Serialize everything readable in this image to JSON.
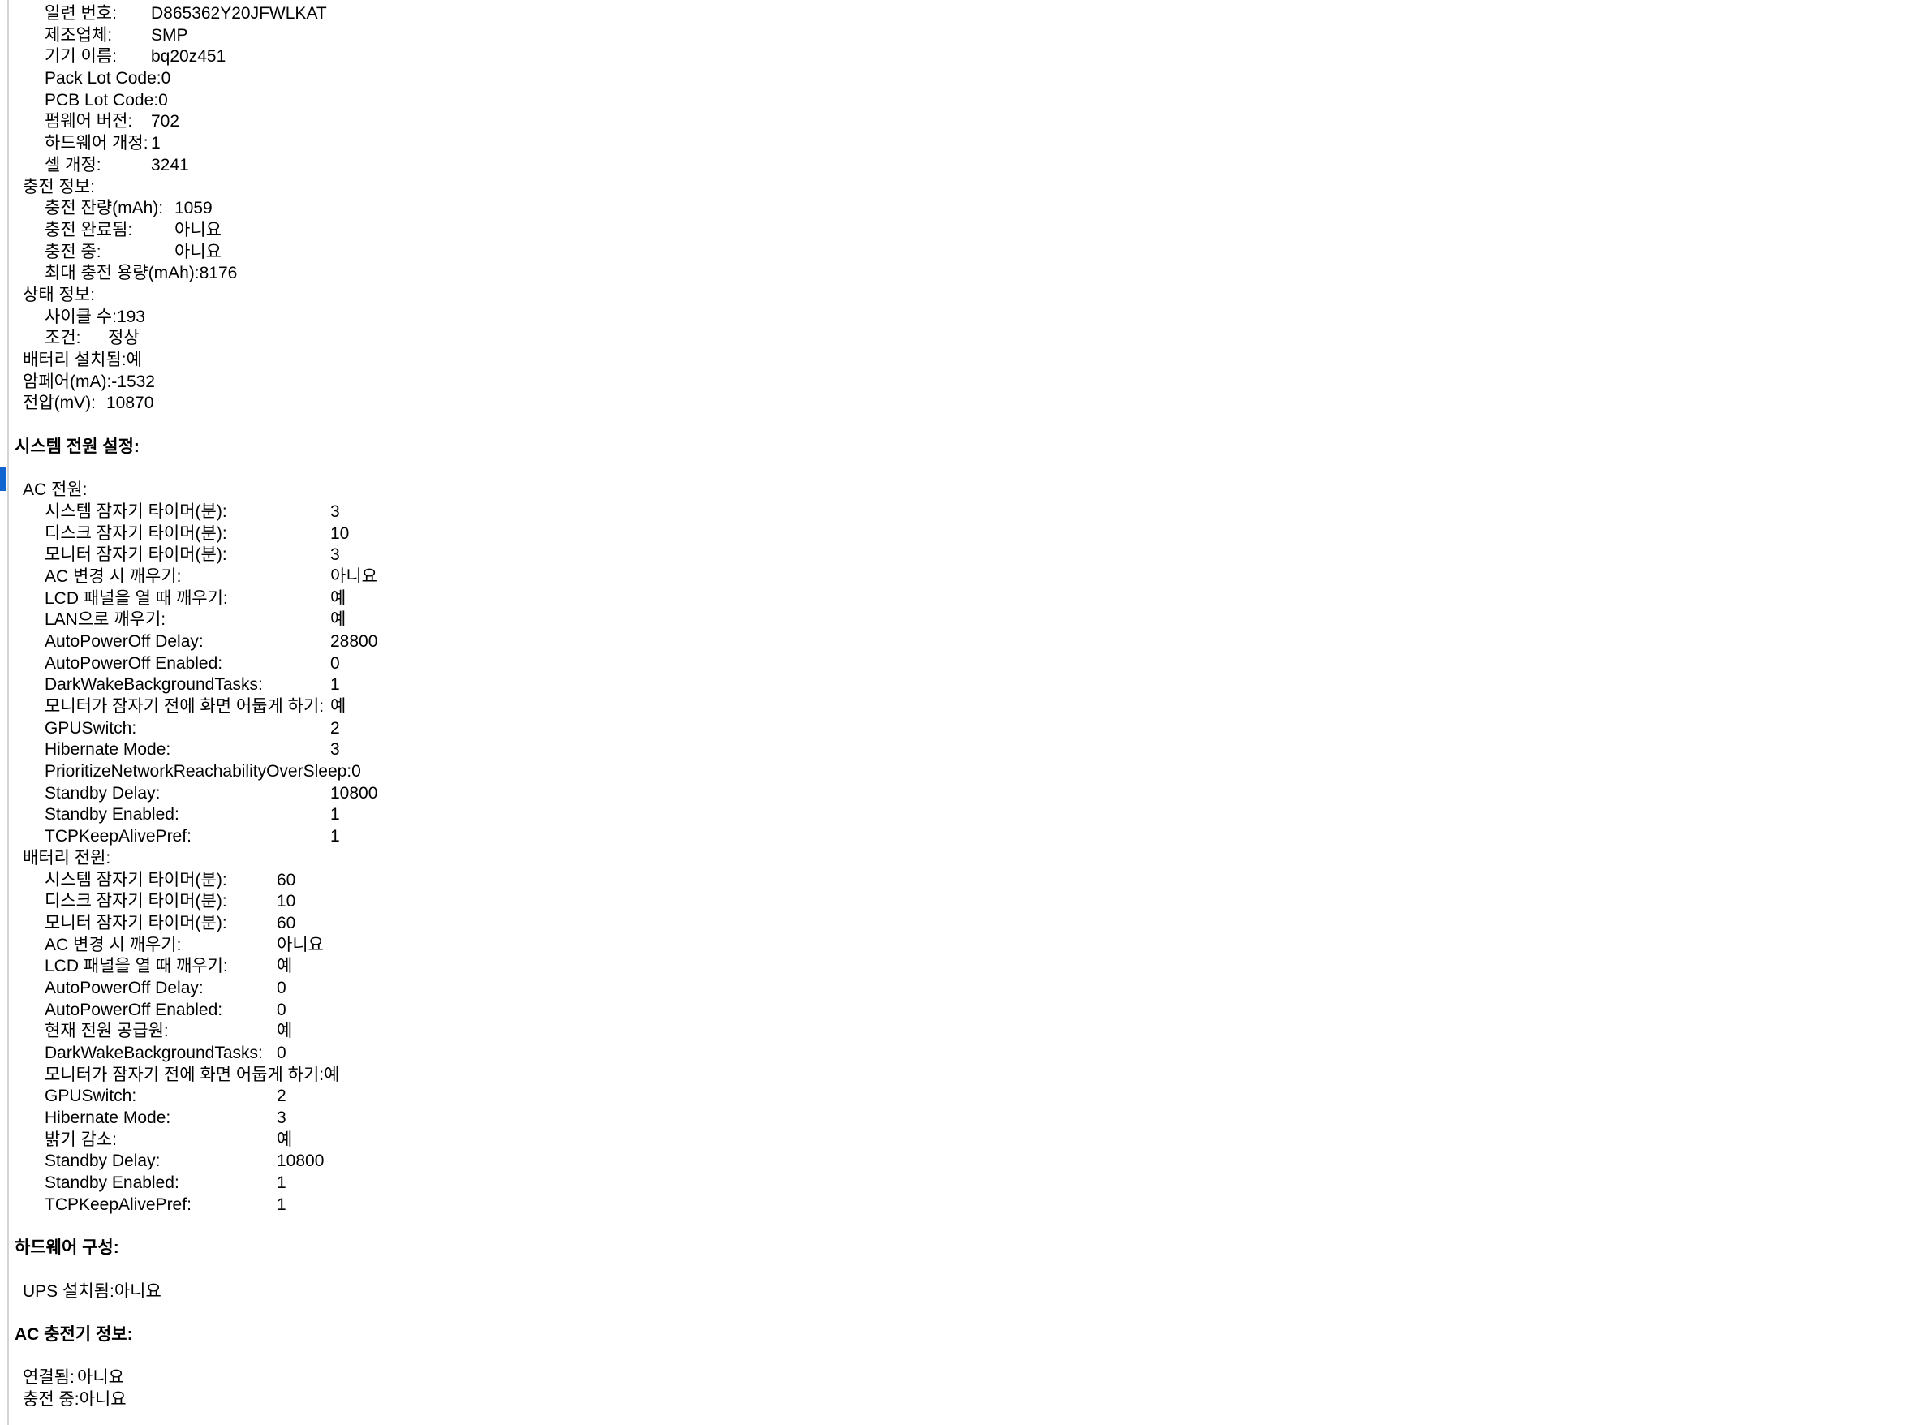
{
  "colors": {
    "background": "#ffffff",
    "text": "#000000",
    "pane_divider": "#d4d4d4",
    "selection_bar": "#1264d1"
  },
  "groups": {
    "battery_model": {
      "indent": 55,
      "label_width": 131
    },
    "charge_info": {
      "indent": 55,
      "label_width": 160
    },
    "status_info": {
      "indent": 55,
      "label_width": 78
    },
    "battery_top": {
      "indent": 28,
      "label_width": 103
    },
    "ac_power": {
      "indent": 55,
      "label_width": 352
    },
    "battery_power": {
      "indent": 55,
      "label_width": 286
    },
    "ups": {
      "indent": 28,
      "label_width": 102
    },
    "ac_charger": {
      "indent": 28,
      "label_width": 67
    },
    "header_indent": 18,
    "subhead_indent": 28
  },
  "content": {
    "lines": [
      {
        "t": "kv",
        "g": "battery_model",
        "label": "일련 번호:",
        "value": "D865362Y20JFWLKAT"
      },
      {
        "t": "kv",
        "g": "battery_model",
        "label": "제조업체:",
        "value": "SMP"
      },
      {
        "t": "kv",
        "g": "battery_model",
        "label": "기기 이름:",
        "value": "bq20z451"
      },
      {
        "t": "kv",
        "g": "battery_model",
        "label": "Pack Lot Code:",
        "value": "0"
      },
      {
        "t": "kv",
        "g": "battery_model",
        "label": "PCB Lot Code:",
        "value": "0"
      },
      {
        "t": "kv",
        "g": "battery_model",
        "label": "펌웨어 버전:",
        "value": "702"
      },
      {
        "t": "kv",
        "g": "battery_model",
        "label": "하드웨어 개정:",
        "value": "1"
      },
      {
        "t": "kv",
        "g": "battery_model",
        "label": "셀 개정:",
        "value": "3241"
      },
      {
        "t": "sub",
        "label": "충전 정보:"
      },
      {
        "t": "kv",
        "g": "charge_info",
        "label": "충전 잔량(mAh):",
        "value": "1059"
      },
      {
        "t": "kv",
        "g": "charge_info",
        "label": "충전 완료됨:",
        "value": "아니요"
      },
      {
        "t": "kv",
        "g": "charge_info",
        "label": "충전 중:",
        "value": "아니요"
      },
      {
        "t": "kv",
        "g": "charge_info",
        "label": "최대 충전 용량(mAh):",
        "value": "8176"
      },
      {
        "t": "sub",
        "label": "상태 정보:"
      },
      {
        "t": "kv",
        "g": "status_info",
        "label": "사이클 수:",
        "value": "193"
      },
      {
        "t": "kv",
        "g": "status_info",
        "label": "조건:",
        "value": "정상"
      },
      {
        "t": "kv",
        "g": "battery_top",
        "label": "배터리 설치됨:",
        "value": "예"
      },
      {
        "t": "kv",
        "g": "battery_top",
        "label": "암페어(mA):",
        "value": "-1532"
      },
      {
        "t": "kv",
        "g": "battery_top",
        "label": "전압(mV):",
        "value": "10870"
      },
      {
        "t": "blank"
      },
      {
        "t": "h",
        "label": "시스템 전원 설정:"
      },
      {
        "t": "blank"
      },
      {
        "t": "sub",
        "label": "AC 전원:"
      },
      {
        "t": "kv",
        "g": "ac_power",
        "label": "시스템 잠자기 타이머(분):",
        "value": "3"
      },
      {
        "t": "kv",
        "g": "ac_power",
        "label": "디스크 잠자기 타이머(분):",
        "value": "10"
      },
      {
        "t": "kv",
        "g": "ac_power",
        "label": "모니터 잠자기 타이머(분):",
        "value": "3"
      },
      {
        "t": "kv",
        "g": "ac_power",
        "label": "AC 변경 시 깨우기:",
        "value": "아니요"
      },
      {
        "t": "kv",
        "g": "ac_power",
        "label": "LCD 패널을 열 때 깨우기:",
        "value": "예"
      },
      {
        "t": "kv",
        "g": "ac_power",
        "label": "LAN으로 깨우기:",
        "value": "예"
      },
      {
        "t": "kv",
        "g": "ac_power",
        "label": "AutoPowerOff Delay:",
        "value": "28800"
      },
      {
        "t": "kv",
        "g": "ac_power",
        "label": "AutoPowerOff Enabled:",
        "value": "0"
      },
      {
        "t": "kv",
        "g": "ac_power",
        "label": "DarkWakeBackgroundTasks:",
        "value": "1"
      },
      {
        "t": "kv",
        "g": "ac_power",
        "label": "모니터가 잠자기 전에 화면 어둡게 하기:",
        "value": "예"
      },
      {
        "t": "kv",
        "g": "ac_power",
        "label": "GPUSwitch:",
        "value": "2"
      },
      {
        "t": "kv",
        "g": "ac_power",
        "label": "Hibernate Mode:",
        "value": "3"
      },
      {
        "t": "kv",
        "g": "ac_power",
        "label": "PrioritizeNetworkReachabilityOverSleep:",
        "value": "0"
      },
      {
        "t": "kv",
        "g": "ac_power",
        "label": "Standby Delay:",
        "value": "10800"
      },
      {
        "t": "kv",
        "g": "ac_power",
        "label": "Standby Enabled:",
        "value": "1"
      },
      {
        "t": "kv",
        "g": "ac_power",
        "label": "TCPKeepAlivePref:",
        "value": "1"
      },
      {
        "t": "sub",
        "label": "배터리 전원:"
      },
      {
        "t": "kv",
        "g": "battery_power",
        "label": "시스템 잠자기 타이머(분):",
        "value": "60"
      },
      {
        "t": "kv",
        "g": "battery_power",
        "label": "디스크 잠자기 타이머(분):",
        "value": "10"
      },
      {
        "t": "kv",
        "g": "battery_power",
        "label": "모니터 잠자기 타이머(분):",
        "value": "60"
      },
      {
        "t": "kv",
        "g": "battery_power",
        "label": "AC 변경 시 깨우기:",
        "value": "아니요"
      },
      {
        "t": "kv",
        "g": "battery_power",
        "label": "LCD 패널을 열 때 깨우기:",
        "value": "예"
      },
      {
        "t": "kv",
        "g": "battery_power",
        "label": "AutoPowerOff Delay:",
        "value": "0"
      },
      {
        "t": "kv",
        "g": "battery_power",
        "label": "AutoPowerOff Enabled:",
        "value": "0"
      },
      {
        "t": "kv",
        "g": "battery_power",
        "label": "현재 전원 공급원:",
        "value": "예"
      },
      {
        "t": "kv",
        "g": "battery_power",
        "label": "DarkWakeBackgroundTasks:",
        "value": "0"
      },
      {
        "t": "kv",
        "g": "battery_power",
        "label": "모니터가 잠자기 전에 화면 어둡게 하기:",
        "value": "예"
      },
      {
        "t": "kv",
        "g": "battery_power",
        "label": "GPUSwitch:",
        "value": "2"
      },
      {
        "t": "kv",
        "g": "battery_power",
        "label": "Hibernate Mode:",
        "value": "3"
      },
      {
        "t": "kv",
        "g": "battery_power",
        "label": "밝기 감소:",
        "value": "예"
      },
      {
        "t": "kv",
        "g": "battery_power",
        "label": "Standby Delay:",
        "value": "10800"
      },
      {
        "t": "kv",
        "g": "battery_power",
        "label": "Standby Enabled:",
        "value": "1"
      },
      {
        "t": "kv",
        "g": "battery_power",
        "label": "TCPKeepAlivePref:",
        "value": "1"
      },
      {
        "t": "blank"
      },
      {
        "t": "h",
        "label": "하드웨어 구성:"
      },
      {
        "t": "blank"
      },
      {
        "t": "kv",
        "g": "ups",
        "label": "UPS 설치됨:",
        "value": "아니요"
      },
      {
        "t": "blank"
      },
      {
        "t": "h",
        "label": "AC 충전기 정보:"
      },
      {
        "t": "blank"
      },
      {
        "t": "kv",
        "g": "ac_charger",
        "label": "연결됨:",
        "value": "아니요"
      },
      {
        "t": "kv",
        "g": "ac_charger",
        "label": "충전 중:",
        "value": "아니요"
      }
    ]
  }
}
